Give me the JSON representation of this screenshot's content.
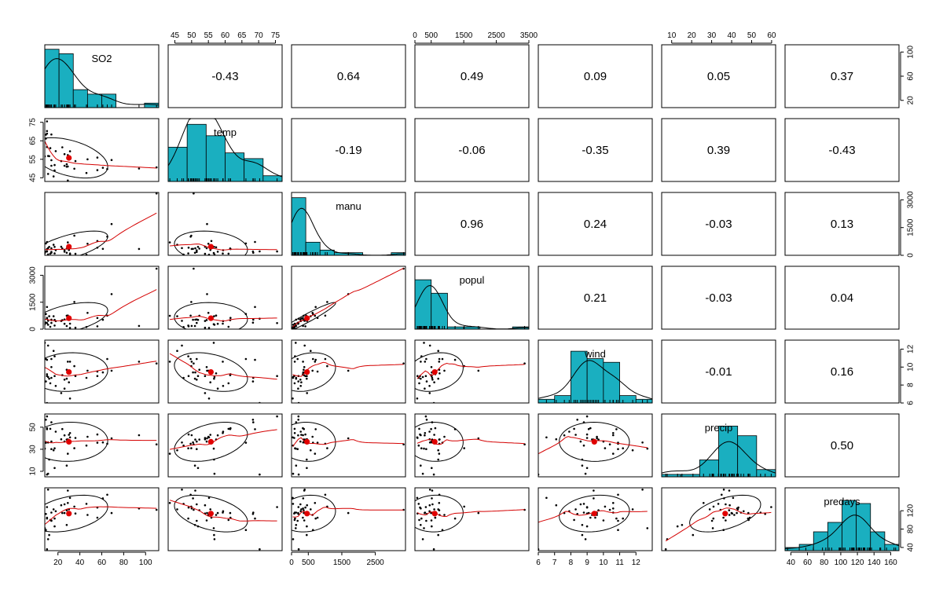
{
  "chart_data": {
    "type": "scatter",
    "kind": "pairs-panel matrix",
    "colors": {
      "histogram": "#1aafc0",
      "smooth": "#d40000",
      "centroid": "#e00000",
      "points": "#000000"
    },
    "variables": [
      {
        "name": "SO2",
        "range": [
          8,
          112
        ],
        "x_ticks": [
          20,
          40,
          60,
          80,
          100
        ],
        "y_ticks": [
          20,
          60,
          100
        ],
        "hist": [
          13,
          12,
          4,
          3,
          3,
          0,
          0,
          1
        ],
        "hist_ylim": 14
      },
      {
        "name": "temp",
        "range": [
          43,
          77
        ],
        "x_ticks": [
          45,
          50,
          55,
          60,
          65,
          70,
          75
        ],
        "y_ticks": [
          45,
          55,
          65,
          75
        ],
        "hist": [
          6,
          10,
          8,
          5,
          4,
          1
        ],
        "hist_ylim": 11
      },
      {
        "name": "manu",
        "range": [
          0,
          3400
        ],
        "x_ticks": [
          0,
          500,
          1500,
          2500
        ],
        "y_ticks": [
          0,
          1500,
          3000
        ],
        "hist": [
          22,
          5,
          2,
          1,
          1,
          0,
          0,
          1
        ],
        "hist_ylim": 24
      },
      {
        "name": "popul",
        "range": [
          0,
          3500
        ],
        "x_ticks": [
          0,
          500,
          1500,
          2500,
          3500
        ],
        "y_ticks": [
          0,
          1500,
          3000
        ],
        "hist": [
          22,
          16,
          1,
          1,
          0,
          0,
          1
        ],
        "hist_ylim": 28
      },
      {
        "name": "wind",
        "range": [
          6,
          13
        ],
        "x_ticks": [
          6,
          7,
          8,
          9,
          10,
          11,
          12
        ],
        "y_ticks": [
          6,
          8,
          10,
          12
        ],
        "hist": [
          1,
          2,
          14,
          12,
          11,
          2,
          1
        ],
        "hist_ylim": 17
      },
      {
        "name": "precip",
        "range": [
          5,
          62
        ],
        "x_ticks": [
          10,
          20,
          30,
          40,
          50,
          60
        ],
        "y_ticks": [
          10,
          30,
          50
        ],
        "hist": [
          1,
          1,
          7,
          21,
          17,
          3
        ],
        "hist_ylim": 26
      },
      {
        "name": "predays",
        "range": [
          33,
          170
        ],
        "x_ticks": [
          40,
          60,
          80,
          100,
          120,
          140,
          160
        ],
        "y_ticks": [
          40,
          80,
          120
        ],
        "hist": [
          1,
          2,
          6,
          9,
          16,
          15,
          6,
          2
        ],
        "hist_ylim": 20
      }
    ],
    "correlations": [
      [
        "",
        "-0.43",
        "0.64",
        "0.49",
        "0.09",
        "0.05",
        "0.37"
      ],
      [
        "",
        "",
        "-0.19",
        "-0.06",
        "-0.35",
        "0.39",
        "-0.43"
      ],
      [
        "",
        "",
        "",
        "0.96",
        "0.24",
        "-0.03",
        "0.13"
      ],
      [
        "",
        "",
        "",
        "",
        "0.21",
        "-0.03",
        "0.04"
      ],
      [
        "",
        "",
        "",
        "",
        "",
        "-0.01",
        "0.16"
      ],
      [
        "",
        "",
        "",
        "",
        "",
        "",
        "0.50"
      ]
    ],
    "observations": [
      [
        10,
        70.3,
        213,
        582,
        6.0,
        7.05,
        36
      ],
      [
        13,
        61.0,
        91,
        132,
        8.2,
        48.52,
        100
      ],
      [
        12,
        56.7,
        453,
        716,
        8.7,
        20.66,
        67
      ],
      [
        17,
        51.9,
        454,
        515,
        9.0,
        12.95,
        86
      ],
      [
        56,
        49.1,
        412,
        158,
        9.0,
        43.37,
        127
      ],
      [
        36,
        54.0,
        80,
        80,
        9.0,
        40.25,
        114
      ],
      [
        29,
        57.3,
        434,
        757,
        9.3,
        38.89,
        111
      ],
      [
        14,
        68.4,
        136,
        529,
        8.8,
        54.47,
        116
      ],
      [
        10,
        75.5,
        207,
        335,
        9.0,
        59.8,
        128
      ],
      [
        24,
        61.5,
        368,
        497,
        9.1,
        48.34,
        115
      ],
      [
        110,
        50.6,
        3344,
        3369,
        10.4,
        34.44,
        122
      ],
      [
        28,
        52.3,
        361,
        746,
        9.7,
        38.74,
        121
      ],
      [
        17,
        49.0,
        104,
        201,
        11.2,
        30.85,
        103
      ],
      [
        8,
        56.6,
        125,
        277,
        12.7,
        30.58,
        82
      ],
      [
        30,
        55.6,
        291,
        593,
        8.3,
        43.11,
        123
      ],
      [
        9,
        68.3,
        204,
        361,
        8.4,
        56.77,
        113
      ],
      [
        47,
        55.0,
        625,
        905,
        9.6,
        41.31,
        111
      ],
      [
        35,
        49.9,
        1064,
        1513,
        10.1,
        30.96,
        129
      ],
      [
        29,
        43.5,
        699,
        744,
        10.6,
        25.94,
        137
      ],
      [
        14,
        54.5,
        381,
        507,
        10.0,
        37.0,
        99
      ],
      [
        56,
        55.9,
        775,
        622,
        9.5,
        35.89,
        105
      ],
      [
        14,
        51.5,
        181,
        347,
        10.9,
        30.18,
        98
      ],
      [
        11,
        56.8,
        46,
        244,
        8.9,
        7.77,
        58
      ],
      [
        46,
        47.6,
        44,
        116,
        8.8,
        33.36,
        135
      ],
      [
        11,
        47.1,
        391,
        463,
        12.4,
        36.11,
        166
      ],
      [
        23,
        54.0,
        462,
        453,
        7.1,
        39.04,
        132
      ],
      [
        65,
        49.7,
        1007,
        751,
        10.9,
        34.99,
        155
      ],
      [
        26,
        51.5,
        266,
        540,
        8.6,
        37.01,
        134
      ],
      [
        69,
        54.6,
        1692,
        1950,
        9.6,
        39.93,
        115
      ],
      [
        61,
        50.4,
        347,
        520,
        9.4,
        36.22,
        147
      ],
      [
        94,
        50.0,
        343,
        179,
        10.6,
        42.75,
        125
      ],
      [
        10,
        61.6,
        337,
        624,
        9.2,
        49.1,
        105
      ],
      [
        18,
        59.4,
        275,
        448,
        7.9,
        46.0,
        119
      ],
      [
        9,
        66.2,
        641,
        844,
        10.9,
        35.94,
        78
      ],
      [
        10,
        68.9,
        721,
        1233,
        10.8,
        48.19,
        103
      ],
      [
        28,
        51.0,
        137,
        176,
        8.7,
        15.17,
        89
      ],
      [
        31,
        59.3,
        96,
        308,
        10.6,
        44.68,
        116
      ],
      [
        26,
        57.8,
        197,
        299,
        7.6,
        42.59,
        115
      ],
      [
        29,
        51.1,
        379,
        531,
        9.4,
        38.79,
        164
      ],
      [
        31,
        55.2,
        35,
        71,
        6.5,
        40.75,
        148
      ],
      [
        16,
        45.7,
        569,
        717,
        11.8,
        29.07,
        123
      ]
    ]
  }
}
